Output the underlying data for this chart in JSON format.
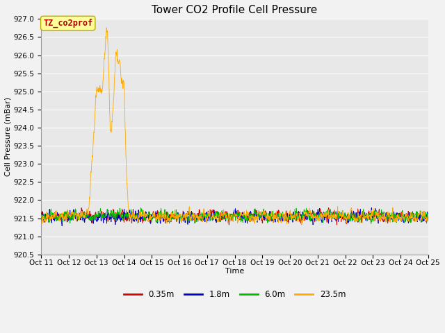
{
  "title": "Tower CO2 Profile Cell Pressure",
  "xlabel": "Time",
  "ylabel": "Cell Pressure (mBar)",
  "ylim": [
    920.5,
    927.0
  ],
  "yticks": [
    920.5,
    921.0,
    921.5,
    922.0,
    922.5,
    923.0,
    923.5,
    924.0,
    924.5,
    925.0,
    925.5,
    926.0,
    926.5,
    927.0
  ],
  "x_tick_labels": [
    "Oct 11",
    "Oct 12",
    "Oct 13",
    "Oct 14",
    "Oct 15",
    "Oct 16",
    "Oct 17",
    "Oct 18",
    "Oct 19",
    "Oct 20",
    "Oct 21",
    "Oct 22",
    "Oct 23",
    "Oct 24",
    "Oct 25"
  ],
  "series": [
    {
      "label": "0.35m",
      "color": "#dd0000"
    },
    {
      "label": "1.8m",
      "color": "#0000cc"
    },
    {
      "label": "6.0m",
      "color": "#00bb00"
    },
    {
      "label": "23.5m",
      "color": "#ffaa00"
    }
  ],
  "annotation_text": "TZ_co2prof",
  "annotation_color": "#aa0000",
  "annotation_bg": "#ffff99",
  "annotation_border": "#bbaa00",
  "fig_bg": "#f2f2f2",
  "plot_bg": "#e8e8e8",
  "grid_color": "#ffffff",
  "title_fontsize": 11,
  "axis_fontsize": 8,
  "tick_fontsize": 7.5,
  "legend_fontsize": 8.5,
  "base_mean": 921.55,
  "base_std": 0.18,
  "n_points": 2016,
  "n_days": 14
}
